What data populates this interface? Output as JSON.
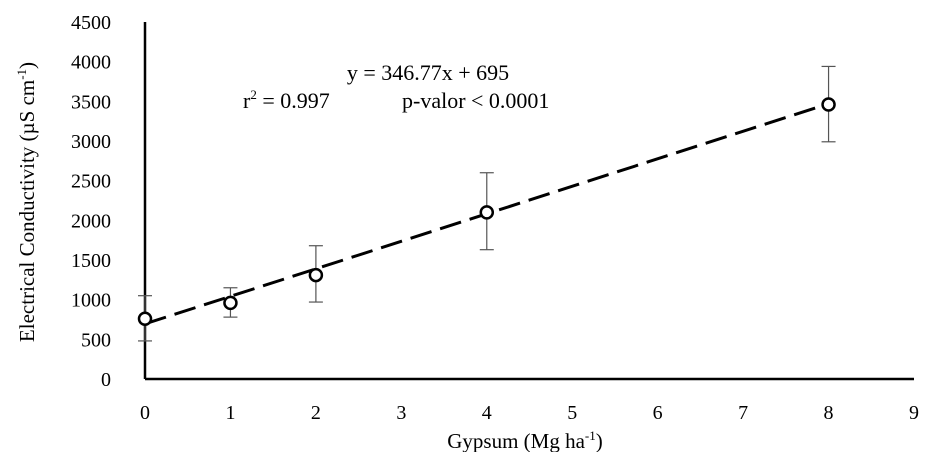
{
  "chart_data": {
    "type": "scatter",
    "title": "",
    "xlabel": "Gypsum (Mg ha-1)",
    "xlabel_parts": {
      "main": "Gypsum (Mg ha",
      "sup": "-1",
      "end": ")"
    },
    "ylabel": "Electrical Conductivity (µS cm-1)",
    "ylabel_parts": {
      "main": "Electrical Conductivity (µS cm",
      "sup": "-1",
      "end": ")"
    },
    "xlim": [
      0,
      9
    ],
    "ylim": [
      0,
      4500
    ],
    "x_ticks": [
      "0",
      "1",
      "2",
      "3",
      "4",
      "5",
      "6",
      "7",
      "8",
      "9"
    ],
    "y_ticks": [
      "0",
      "500",
      "1000",
      "1500",
      "2000",
      "2500",
      "3000",
      "3500",
      "4000",
      "4500"
    ],
    "grid": false,
    "series": [
      {
        "x": [
          0,
          1,
          2,
          4,
          8
        ],
        "y": [
          760,
          960,
          1310,
          2100,
          3460
        ],
        "error_low": [
          480,
          780,
          970,
          1630,
          2990
        ],
        "error_high": [
          1050,
          1150,
          1680,
          2600,
          3940
        ],
        "marker": "open-circle",
        "color": "#000000"
      }
    ],
    "trendline": {
      "slope": 346.77,
      "intercept": 695,
      "x_range": [
        0,
        8
      ],
      "style": "dashed"
    },
    "annotations": {
      "equation": "y = 346.77x + 695",
      "r2_prefix": "r",
      "r2_sup": "2",
      "r2_value": " = 0.997",
      "p_value": "p-valor < 0.0001"
    }
  }
}
